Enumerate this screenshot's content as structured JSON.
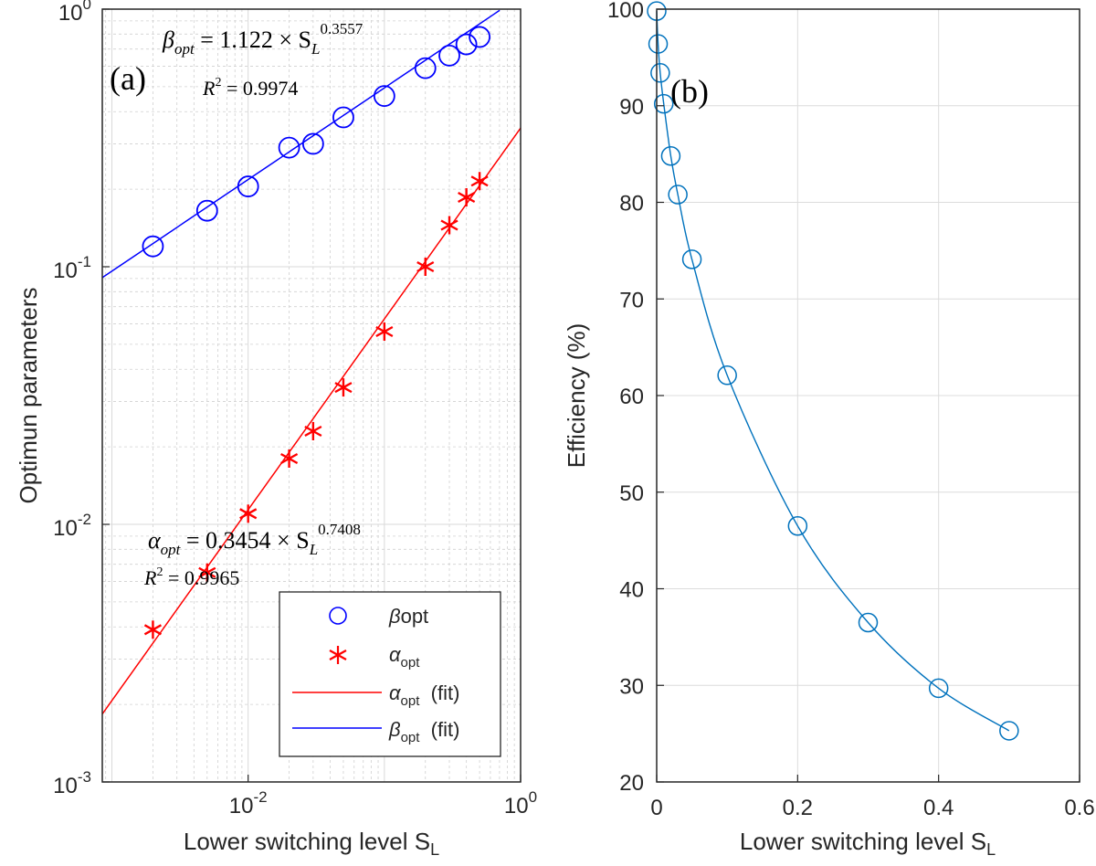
{
  "chart_data": [
    {
      "type": "scatter",
      "panel_label": "(a)",
      "xscale": "log",
      "yscale": "log",
      "xlim": [
        0.001,
        1
      ],
      "ylim": [
        0.001,
        1
      ],
      "xlabel_main": "Lower switching level S",
      "xlabel_sub": "L",
      "ylabel": "Optimun parameters",
      "x_ticks": [
        {
          "value": 0.01,
          "base": "10",
          "exp": "-2"
        },
        {
          "value": 1,
          "base": "10",
          "exp": "0"
        }
      ],
      "y_ticks": [
        {
          "value": 0.001,
          "base": "10",
          "exp": "-3"
        },
        {
          "value": 0.01,
          "base": "10",
          "exp": "-2"
        },
        {
          "value": 0.1,
          "base": "10",
          "exp": "-1"
        },
        {
          "value": 1,
          "base": "10",
          "exp": "0"
        }
      ],
      "grid": true,
      "series": [
        {
          "name": "beta_opt",
          "x": [
            0.002,
            0.005,
            0.01,
            0.02,
            0.03,
            0.05,
            0.1,
            0.2,
            0.3,
            0.4,
            0.5
          ],
          "values": [
            0.12,
            0.165,
            0.205,
            0.29,
            0.3,
            0.38,
            0.46,
            0.59,
            0.66,
            0.73,
            0.78
          ],
          "color": "#0000ff",
          "marker": "circle"
        },
        {
          "name": "alpha_opt",
          "x": [
            0.002,
            0.005,
            0.01,
            0.02,
            0.03,
            0.05,
            0.1,
            0.2,
            0.3,
            0.4,
            0.5
          ],
          "values": [
            0.0039,
            0.0065,
            0.011,
            0.018,
            0.023,
            0.034,
            0.056,
            0.1,
            0.145,
            0.186,
            0.215
          ],
          "color": "#ff0000",
          "marker": "asterisk"
        }
      ],
      "fits": [
        {
          "name": "beta_opt (fit)",
          "coef": 1.122,
          "exponent": 0.3557,
          "color": "#0000ff"
        },
        {
          "name": "alpha_opt (fit)",
          "coef": 0.3454,
          "exponent": 0.7408,
          "color": "#ff0000"
        }
      ],
      "annotations": {
        "beta_eq": {
          "sym": "β",
          "sub": "opt",
          "mid": " = 1.122 × S",
          "sub2": "L",
          "sup": "0.3557"
        },
        "beta_r2": {
          "sym": "R",
          "sup": "2",
          "rest": " = 0.9974"
        },
        "alpha_eq": {
          "sym": "α",
          "sub": "opt",
          "mid": " = 0.3454 × S",
          "sub2": "L",
          "sup": "0.7408"
        },
        "alpha_r2": {
          "sym": "R",
          "sup": "2",
          "rest": " = 0.9965"
        }
      },
      "legend": {
        "position": "bottom-right",
        "entries": [
          {
            "pre": "β",
            "sub": "",
            "post": "opt"
          },
          {
            "pre": "α",
            "sub": "opt",
            "post": ""
          },
          {
            "pre": "α",
            "sub": "opt",
            "post": "  (fit)"
          },
          {
            "pre": "β",
            "sub": "opt",
            "post": "  (fit)"
          }
        ]
      }
    },
    {
      "type": "line",
      "panel_label": "(b)",
      "xlim": [
        0,
        0.6
      ],
      "ylim": [
        20,
        100
      ],
      "x_ticks": [
        "0",
        "0.2",
        "0.4",
        "0.6"
      ],
      "y_ticks": [
        "20",
        "30",
        "40",
        "50",
        "60",
        "70",
        "80",
        "90",
        "100"
      ],
      "xlabel_main": "Lower switching level S",
      "xlabel_sub": "L",
      "ylabel": "Efficiency (%)",
      "grid": true,
      "series": [
        {
          "name": "efficiency",
          "x": [
            0,
            0.002,
            0.005,
            0.01,
            0.02,
            0.03,
            0.05,
            0.1,
            0.2,
            0.3,
            0.4,
            0.5
          ],
          "values": [
            99.8,
            96.4,
            93.4,
            90.2,
            84.8,
            80.8,
            74.1,
            62.1,
            46.5,
            36.5,
            29.7,
            25.3
          ],
          "color": "#0072bd",
          "marker": "circle"
        }
      ]
    }
  ]
}
